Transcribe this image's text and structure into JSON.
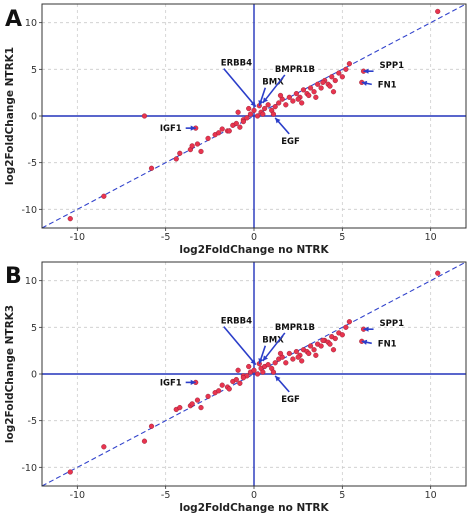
{
  "colors": {
    "point_fill": "#e8344f",
    "point_stroke": "#8a1a2e",
    "axis_line": "#2233bb",
    "diagonal": "#3344cc",
    "arrow": "#2b3ec9",
    "grid": "#cccccc",
    "frame": "#333333"
  },
  "chart_data": [
    {
      "type": "scatter",
      "panel_label": "A",
      "xlabel": "log2FoldChange no NTRK",
      "ylabel": "log2FoldChange NTRK1",
      "xlim": [
        -12,
        12
      ],
      "ylim": [
        -12,
        12
      ],
      "xticks": [
        -10,
        -5,
        0,
        5,
        10
      ],
      "yticks": [
        -10,
        -5,
        0,
        5,
        10
      ],
      "grid": true,
      "diagonal": "y = x",
      "annotations": [
        {
          "label": "ERBB4",
          "point": [
            0.1,
            1.0
          ]
        },
        {
          "label": "BMX",
          "point": [
            0.3,
            1.1
          ]
        },
        {
          "label": "BMPR1B",
          "point": [
            0.5,
            1.4
          ]
        },
        {
          "label": "SPP1",
          "point": [
            6.2,
            4.8
          ]
        },
        {
          "label": "FN1",
          "point": [
            6.1,
            3.6
          ]
        },
        {
          "label": "IGF1",
          "point": [
            -3.3,
            -1.3
          ]
        },
        {
          "label": "EGF",
          "point": [
            1.2,
            -0.2
          ]
        }
      ],
      "x": [
        -10.4,
        -8.5,
        -6.2,
        -5.8,
        -4.4,
        -4.2,
        -3.6,
        -3.5,
        -3.2,
        -3.0,
        -2.6,
        -2.2,
        -2.0,
        -1.8,
        -1.5,
        -1.2,
        -1.0,
        -0.8,
        -0.6,
        -0.4,
        -0.2,
        0.0,
        0.2,
        0.4,
        0.6,
        0.8,
        1.0,
        1.2,
        1.4,
        1.6,
        1.8,
        2.0,
        2.2,
        2.4,
        2.6,
        2.8,
        3.0,
        3.2,
        3.4,
        3.6,
        3.8,
        4.0,
        4.2,
        4.4,
        4.6,
        4.8,
        5.0,
        5.2,
        5.4,
        -3.3,
        -0.9,
        -0.6,
        0.3,
        1.1,
        2.7,
        3.5,
        4.5,
        6.2,
        6.1,
        10.4,
        -1.4,
        -0.3,
        0.5,
        1.5,
        2.5,
        3.1,
        3.9,
        4.3
      ],
      "y": [
        -11.0,
        -8.6,
        0.0,
        -5.6,
        -4.6,
        -4.0,
        -3.6,
        -3.2,
        -3.0,
        -3.8,
        -2.4,
        -2.0,
        -1.8,
        -1.4,
        -1.6,
        -1.0,
        -0.8,
        -1.2,
        -0.4,
        -0.2,
        0.2,
        0.6,
        0.0,
        0.4,
        0.8,
        1.2,
        0.6,
        1.0,
        1.4,
        1.8,
        1.2,
        2.0,
        1.6,
        2.4,
        2.0,
        2.8,
        2.4,
        3.0,
        2.6,
        3.4,
        3.0,
        3.8,
        3.4,
        4.2,
        3.8,
        4.6,
        4.2,
        5.0,
        5.6,
        -1.3,
        0.4,
        -0.6,
        1.1,
        0.2,
        1.4,
        2.0,
        2.6,
        4.8,
        3.6,
        11.2,
        -1.6,
        0.8,
        0.2,
        2.2,
        1.8,
        2.2,
        3.6,
        3.2
      ]
    },
    {
      "type": "scatter",
      "panel_label": "B",
      "xlabel": "log2FoldChange no NTRK",
      "ylabel": "log2FoldChange NTRK3",
      "xlim": [
        -12,
        12
      ],
      "ylim": [
        -12,
        12
      ],
      "xticks": [
        -10,
        -5,
        0,
        5,
        10
      ],
      "yticks": [
        -10,
        -5,
        0,
        5,
        10
      ],
      "grid": true,
      "diagonal": "y = x",
      "annotations": [
        {
          "label": "ERBB4",
          "point": [
            0.1,
            1.0
          ]
        },
        {
          "label": "BMX",
          "point": [
            0.3,
            1.1
          ]
        },
        {
          "label": "BMPR1B",
          "point": [
            0.5,
            1.4
          ]
        },
        {
          "label": "SPP1",
          "point": [
            6.2,
            4.8
          ]
        },
        {
          "label": "FN1",
          "point": [
            6.1,
            3.5
          ]
        },
        {
          "label": "IGF1",
          "point": [
            -3.3,
            -0.9
          ]
        },
        {
          "label": "EGF",
          "point": [
            1.2,
            -0.2
          ]
        }
      ],
      "x": [
        -10.4,
        -8.5,
        -6.2,
        -5.8,
        -4.4,
        -4.2,
        -3.6,
        -3.5,
        -3.2,
        -3.0,
        -2.6,
        -2.2,
        -2.0,
        -1.8,
        -1.5,
        -1.2,
        -1.0,
        -0.8,
        -0.6,
        -0.4,
        -0.2,
        0.0,
        0.2,
        0.4,
        0.6,
        0.8,
        1.0,
        1.2,
        1.4,
        1.6,
        1.8,
        2.0,
        2.2,
        2.4,
        2.6,
        2.8,
        3.0,
        3.2,
        3.4,
        3.6,
        3.8,
        4.0,
        4.2,
        4.4,
        4.6,
        4.8,
        5.0,
        5.2,
        5.4,
        -3.3,
        -0.9,
        -0.6,
        0.3,
        1.1,
        2.7,
        3.5,
        4.5,
        6.2,
        6.1,
        10.4,
        -1.4,
        -0.3,
        0.5,
        1.5,
        2.5,
        3.1,
        3.9,
        4.3
      ],
      "y": [
        -10.5,
        -7.8,
        -7.2,
        -5.6,
        -3.8,
        -3.6,
        -3.4,
        -3.2,
        -2.8,
        -3.6,
        -2.4,
        -2.0,
        -1.8,
        -1.2,
        -1.4,
        -0.8,
        -0.6,
        -1.0,
        -0.2,
        -0.2,
        0.2,
        0.4,
        0.0,
        0.6,
        0.8,
        1.0,
        0.6,
        1.2,
        1.6,
        1.8,
        1.2,
        2.2,
        1.6,
        2.4,
        2.0,
        2.6,
        2.4,
        3.0,
        2.6,
        3.2,
        3.0,
        3.6,
        3.4,
        4.0,
        3.8,
        4.4,
        4.2,
        5.0,
        5.6,
        -0.9,
        0.4,
        -0.4,
        1.1,
        0.2,
        1.4,
        2.0,
        2.6,
        4.8,
        3.5,
        10.8,
        -1.6,
        0.8,
        0.2,
        2.2,
        1.8,
        2.2,
        3.6,
        3.2
      ]
    }
  ]
}
